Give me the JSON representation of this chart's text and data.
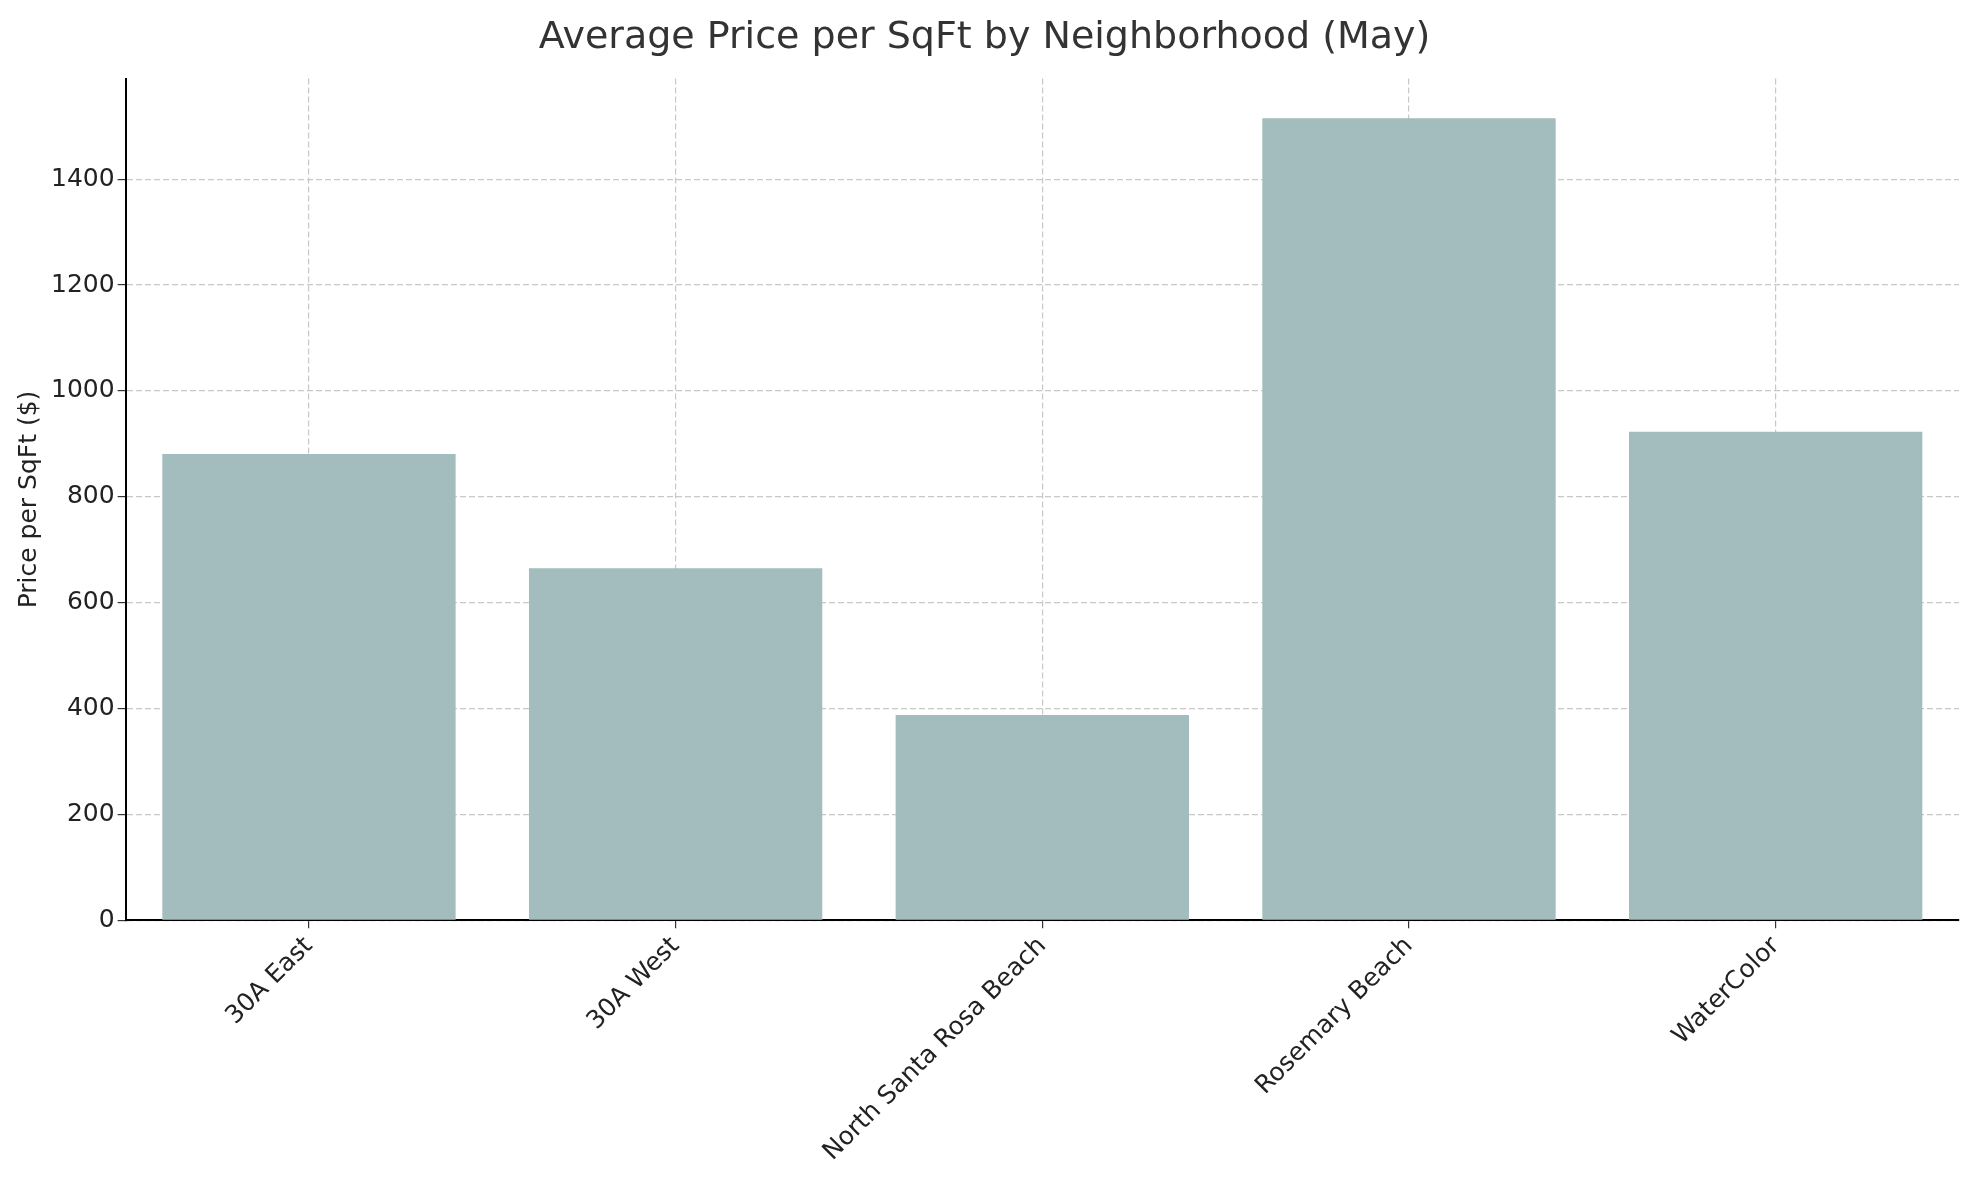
{
  "chart_data": {
    "type": "bar",
    "title": "Average Price per SqFt by Neighborhood (May)",
    "ylabel": "Price per SqFt ($)",
    "categories": [
      "30A East",
      "30A West",
      "North Santa Rosa Beach",
      "Rosemary Beach",
      "WaterColor"
    ],
    "values": [
      881,
      665,
      388,
      1515,
      923
    ],
    "color": "#a3bcbd",
    "ylim": [
      0,
      1590
    ],
    "yticks": [
      0,
      200,
      400,
      600,
      800,
      1000,
      1200,
      1400
    ],
    "grid": true,
    "legend": false
  }
}
